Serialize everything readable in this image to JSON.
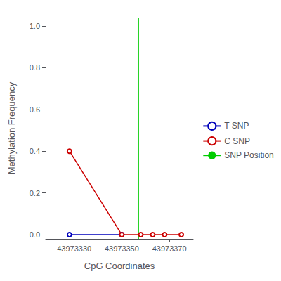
{
  "chart_data": {
    "type": "line",
    "xlabel": "CpG Coordinates",
    "ylabel": "Methylation Frequency",
    "xlim": [
      43973318,
      43973380
    ],
    "xticks": [
      43973330,
      43973350,
      43973370
    ],
    "ylim": [
      -0.02,
      1.04
    ],
    "yticks": [
      {
        "value": 0.0,
        "label": "0.0"
      },
      0.2,
      0.4,
      0.6,
      0.8,
      {
        "value": 1.0,
        "label": "1.0"
      }
    ],
    "marker": "circle",
    "grid": false,
    "legend": "right",
    "series": [
      {
        "name": "T SNP",
        "color": "#0000bb",
        "x": [
          43973328,
          43973350
        ],
        "values": [
          0.0,
          0.0
        ]
      },
      {
        "name": "C SNP",
        "color": "#cc0000",
        "x": [
          43973328,
          43973350,
          43973358,
          43973363,
          43973368,
          43973375
        ],
        "values": [
          0.4,
          0.0,
          0.0,
          0.0,
          0.0,
          0.0
        ]
      },
      {
        "name": "SNP Position",
        "color": "#00cc00",
        "type": "vline",
        "x": [
          43973357
        ]
      }
    ]
  }
}
